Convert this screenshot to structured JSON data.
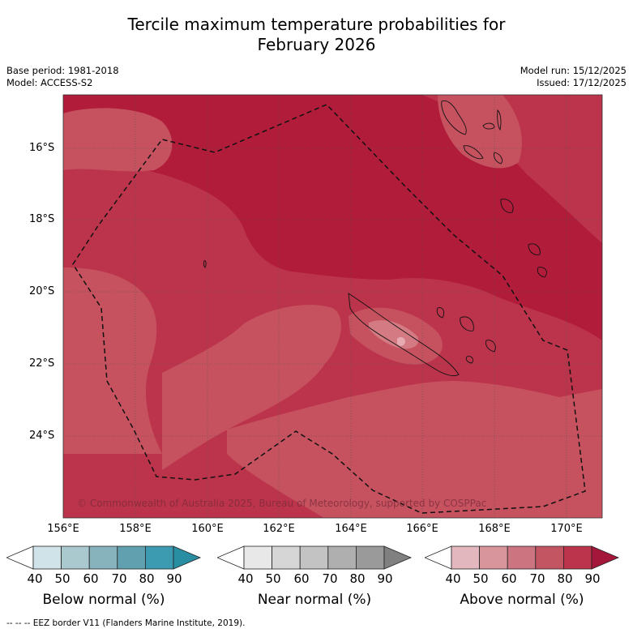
{
  "title_line1": "Tercile maximum temperature probabilities for",
  "title_line2": "February 2026",
  "meta": {
    "base_period": "Base period: 1981-2018",
    "model": "Model: ACCESS-S2",
    "model_run": "Model run: 15/12/2025",
    "issued": "Issued: 17/12/2025"
  },
  "map": {
    "lat_labels": [
      "16°S",
      "18°S",
      "20°S",
      "22°S",
      "24°S"
    ],
    "lon_labels": [
      "156°E",
      "158°E",
      "160°E",
      "162°E",
      "164°E",
      "166°E",
      "168°E",
      "170°E"
    ],
    "copyright": "© Commonwealth of Australia 2025, Bureau of Meteorology, supported by COSPPac",
    "colors": {
      "base": "#bc344b",
      "dark": "#b01c3a",
      "light": "#c6525f",
      "lighter": "#d37a82",
      "palest": "#e6aab0"
    }
  },
  "colorbars": [
    {
      "label": "Below normal (%)",
      "ticks": [
        "40",
        "50",
        "60",
        "70",
        "80",
        "90"
      ],
      "colors": [
        "#ffffff",
        "#cfe3e8",
        "#a9c9cf",
        "#87b3bd",
        "#61a1af",
        "#3c9bb0",
        "#2a8ea3"
      ]
    },
    {
      "label": "Near normal (%)",
      "ticks": [
        "40",
        "50",
        "60",
        "70",
        "80",
        "90"
      ],
      "colors": [
        "#ffffff",
        "#e8e8e8",
        "#d6d6d6",
        "#c3c3c3",
        "#afafaf",
        "#9a9a9a",
        "#808080"
      ]
    },
    {
      "label": "Above normal (%)",
      "ticks": [
        "40",
        "50",
        "60",
        "70",
        "80",
        "90"
      ],
      "colors": [
        "#ffffff",
        "#e2b7be",
        "#d8959c",
        "#cc7580",
        "#c35563",
        "#bc344b",
        "#a4173a"
      ]
    }
  ],
  "footer": "--  --  -- EEZ border V11 (Flanders Marine Institute, 2019)."
}
